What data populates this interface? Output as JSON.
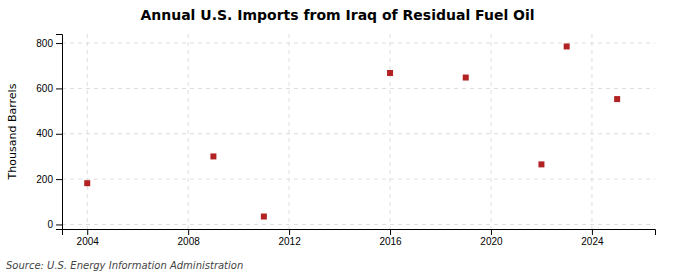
{
  "chart_data": {
    "type": "scatter",
    "title": "Annual U.S. Imports from Iraq of Residual Fuel Oil",
    "ylabel": "Thousand Barrels",
    "source": "Source: U.S. Energy Information Administration",
    "x": [
      2004,
      2009,
      2011,
      2016,
      2019,
      2022,
      2023,
      2025
    ],
    "values": [
      182,
      300,
      35,
      668,
      648,
      265,
      785,
      553
    ],
    "color": "#b22222",
    "marker": "square",
    "xlim": [
      2003,
      2026.5
    ],
    "ylim": [
      -20,
      840
    ],
    "xticks": [
      2004,
      2008,
      2012,
      2016,
      2020,
      2024
    ],
    "yticks": [
      0,
      200,
      400,
      600,
      800
    ],
    "grid": true
  }
}
